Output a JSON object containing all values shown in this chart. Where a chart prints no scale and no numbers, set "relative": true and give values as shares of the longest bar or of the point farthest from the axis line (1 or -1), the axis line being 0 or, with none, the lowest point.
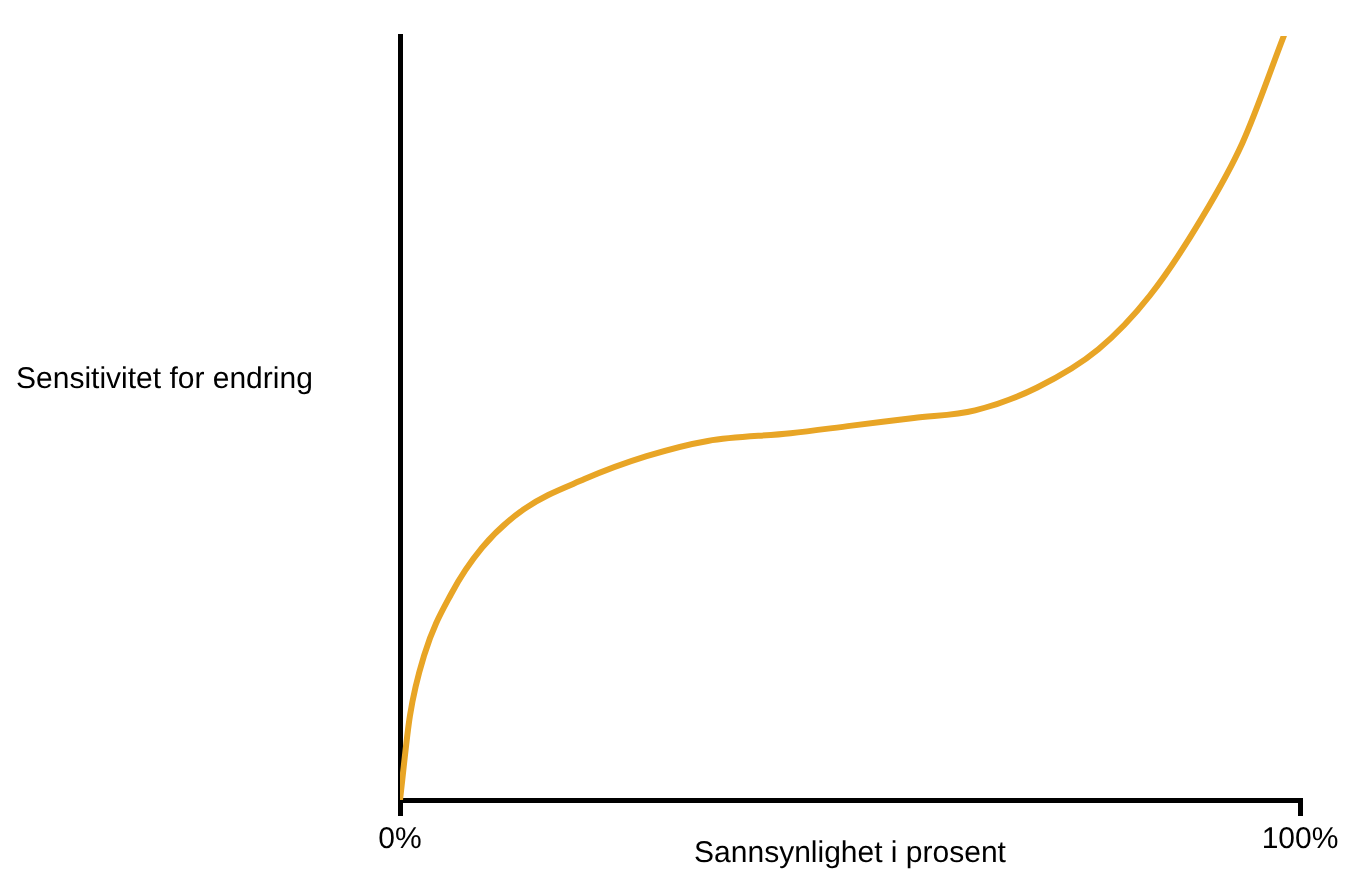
{
  "chart_data": {
    "type": "line",
    "xlabel": "Sannsynlighet i prosent",
    "ylabel": "Sensitivitet for endring",
    "relative": true,
    "xlim": [
      0,
      100
    ],
    "xticks": [
      {
        "value": 0,
        "label": "0%"
      },
      {
        "value": 100,
        "label": "100%"
      }
    ],
    "series": [
      {
        "color": "#e8a526",
        "x": [
          0,
          1.1,
          2.7,
          5.7,
          9.1,
          13.7,
          20.5,
          27.4,
          34.2,
          43.4,
          50.2,
          57.1,
          63.9,
          70.8,
          77.6,
          83.3,
          89.0,
          93.6,
          98.2
        ],
        "values": [
          0,
          0.11,
          0.19,
          0.27,
          0.33,
          0.38,
          0.42,
          0.45,
          0.47,
          0.48,
          0.49,
          0.5,
          0.51,
          0.54,
          0.59,
          0.66,
          0.76,
          0.86,
          1
        ]
      }
    ],
    "grid": false,
    "legend": false,
    "marker": "none",
    "line_style": "solid"
  }
}
